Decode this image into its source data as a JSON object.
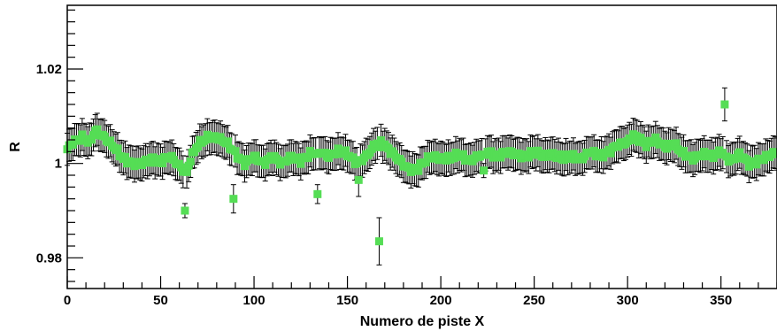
{
  "chart_data": {
    "type": "scatter",
    "title": "",
    "xlabel": "Numero de piste X",
    "ylabel": "R",
    "xlim": [
      0,
      380
    ],
    "ylim": [
      0.9735,
      1.0335
    ],
    "xticks": [
      0,
      50,
      100,
      150,
      200,
      250,
      300,
      350
    ],
    "xtick_labels": [
      "0",
      "50",
      "100",
      "150",
      "200",
      "250",
      "300",
      "350"
    ],
    "yticks": [
      0.98,
      1.0,
      1.02
    ],
    "ytick_labels": [
      "0.98",
      "1",
      "1.02"
    ],
    "grid": false,
    "legend": "none",
    "marker_color": "#55dd55",
    "error_color": "#000000",
    "series": [
      {
        "marker": "square",
        "knots": [
          [
            0,
            1.003
          ],
          [
            3,
            1.0045
          ],
          [
            8,
            1.0055
          ],
          [
            12,
            1.0045
          ],
          [
            15,
            1.007
          ],
          [
            20,
            1.0055
          ],
          [
            25,
            1.0035
          ],
          [
            30,
            1.001
          ],
          [
            35,
            1.0
          ],
          [
            40,
            1.0
          ],
          [
            45,
            1.001
          ],
          [
            50,
            1.0005
          ],
          [
            55,
            1.0015
          ],
          [
            60,
            0.9995
          ],
          [
            64,
            0.998
          ],
          [
            66,
            1.001
          ],
          [
            70,
            1.004
          ],
          [
            75,
            1.0055
          ],
          [
            80,
            1.0055
          ],
          [
            85,
            1.0045
          ],
          [
            90,
            1.002
          ],
          [
            95,
            1.0
          ],
          [
            100,
            1.0015
          ],
          [
            105,
            1.0
          ],
          [
            110,
            1.0015
          ],
          [
            115,
            1.0
          ],
          [
            120,
            1.0015
          ],
          [
            125,
            1.0005
          ],
          [
            130,
            1.002
          ],
          [
            135,
            1.0025
          ],
          [
            140,
            1.0015
          ],
          [
            145,
            1.0025
          ],
          [
            150,
            1.002
          ],
          [
            155,
            1.0
          ],
          [
            160,
            1.0015
          ],
          [
            165,
            1.004
          ],
          [
            168,
            1.0045
          ],
          [
            172,
            1.003
          ],
          [
            177,
            1.001
          ],
          [
            182,
            0.999
          ],
          [
            187,
            0.9985
          ],
          [
            190,
            1.0
          ],
          [
            195,
            1.0015
          ],
          [
            200,
            1.001
          ],
          [
            205,
            1.001
          ],
          [
            210,
            1.002
          ],
          [
            215,
            1.0005
          ],
          [
            220,
            1.0015
          ],
          [
            225,
            1.0025
          ],
          [
            230,
            1.0015
          ],
          [
            235,
            1.0025
          ],
          [
            240,
            1.002
          ],
          [
            245,
            1.0015
          ],
          [
            250,
            1.0025
          ],
          [
            255,
            1.0015
          ],
          [
            260,
            1.002
          ],
          [
            265,
            1.001
          ],
          [
            270,
            1.0015
          ],
          [
            275,
            1.001
          ],
          [
            280,
            1.0025
          ],
          [
            285,
            1.0015
          ],
          [
            290,
            1.0025
          ],
          [
            295,
            1.004
          ],
          [
            300,
            1.0045
          ],
          [
            303,
            1.006
          ],
          [
            307,
            1.005
          ],
          [
            310,
            1.004
          ],
          [
            315,
            1.005
          ],
          [
            320,
            1.0035
          ],
          [
            325,
            1.004
          ],
          [
            330,
            1.002
          ],
          [
            335,
            1.001
          ],
          [
            340,
            1.002
          ],
          [
            345,
            1.0015
          ],
          [
            350,
            1.0025
          ],
          [
            355,
            1.0005
          ],
          [
            360,
            1.002
          ],
          [
            365,
            1.0
          ],
          [
            370,
            1.0005
          ],
          [
            375,
            1.0015
          ],
          [
            380,
            1.0025
          ]
        ],
        "error_halfwidth": 0.0034,
        "outliers": [
          {
            "x": 63,
            "y": 0.99,
            "err": 0.0015
          },
          {
            "x": 89,
            "y": 0.9925,
            "err": 0.003
          },
          {
            "x": 134,
            "y": 0.9935,
            "err": 0.002
          },
          {
            "x": 156,
            "y": 0.9965,
            "err": 0.0035
          },
          {
            "x": 167,
            "y": 0.9835,
            "err": 0.005
          },
          {
            "x": 223,
            "y": 0.9985,
            "err": 0.0015
          },
          {
            "x": 352,
            "y": 1.0125,
            "err": 0.0035
          }
        ]
      }
    ]
  }
}
